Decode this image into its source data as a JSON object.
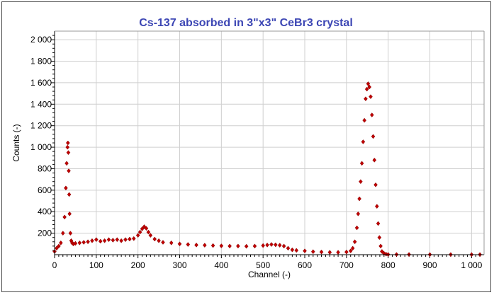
{
  "chart_data": {
    "type": "scatter",
    "title": "Cs-137 absorbed in 3\"x3\" CeBr3 crystal",
    "xlabel": "Channel (-)",
    "ylabel": "Counts (-)",
    "xlim": [
      0,
      1030
    ],
    "ylim": [
      0,
      2080
    ],
    "x_ticks": [
      0,
      100,
      200,
      300,
      400,
      500,
      600,
      700,
      800,
      900,
      1000
    ],
    "x_tick_labels": [
      "0",
      "100",
      "200",
      "300",
      "400",
      "500",
      "600",
      "700",
      "800",
      "900",
      "1 000"
    ],
    "y_ticks": [
      200,
      400,
      600,
      800,
      1000,
      1200,
      1400,
      1600,
      1800,
      2000
    ],
    "y_tick_labels": [
      "200",
      "400",
      "600",
      "800",
      "1 000",
      "1 200",
      "1 400",
      "1 600",
      "1 800",
      "2 000"
    ],
    "grid": true,
    "legend": "none",
    "marker": "diamond",
    "marker_color": "#c00000",
    "marker_edge_color": "#800000",
    "series": [
      {
        "x": [
          0,
          5,
          10,
          15,
          20,
          24,
          27,
          29,
          31,
          32,
          33,
          34,
          35,
          36,
          38,
          40,
          42,
          45,
          50,
          60,
          70,
          80,
          90,
          100,
          110,
          120,
          130,
          140,
          150,
          160,
          170,
          180,
          190,
          200,
          205,
          210,
          215,
          220,
          225,
          230,
          240,
          250,
          260,
          280,
          300,
          320,
          340,
          360,
          380,
          400,
          420,
          440,
          460,
          480,
          500,
          510,
          520,
          530,
          540,
          550,
          560,
          570,
          580,
          600,
          620,
          640,
          660,
          680,
          700,
          710,
          715,
          720,
          725,
          728,
          731,
          734,
          737,
          740,
          743,
          746,
          749,
          752,
          755,
          758,
          761,
          764,
          767,
          770,
          773,
          776,
          779,
          782,
          785,
          790,
          795,
          800,
          820,
          850,
          900,
          950,
          1000,
          1020
        ],
        "y": [
          30,
          60,
          80,
          110,
          200,
          350,
          620,
          850,
          1000,
          1040,
          950,
          780,
          560,
          380,
          200,
          130,
          110,
          100,
          105,
          110,
          115,
          120,
          130,
          140,
          125,
          130,
          140,
          135,
          140,
          130,
          140,
          145,
          150,
          180,
          210,
          240,
          260,
          245,
          210,
          180,
          145,
          130,
          115,
          110,
          100,
          95,
          90,
          88,
          85,
          82,
          80,
          80,
          78,
          80,
          85,
          90,
          95,
          92,
          88,
          80,
          60,
          45,
          40,
          35,
          28,
          25,
          22,
          22,
          25,
          35,
          60,
          120,
          250,
          380,
          520,
          680,
          850,
          1050,
          1250,
          1450,
          1540,
          1590,
          1560,
          1470,
          1300,
          1100,
          880,
          650,
          450,
          290,
          160,
          80,
          30,
          12,
          5,
          2,
          2,
          2,
          1,
          1,
          1,
          1
        ]
      }
    ]
  }
}
